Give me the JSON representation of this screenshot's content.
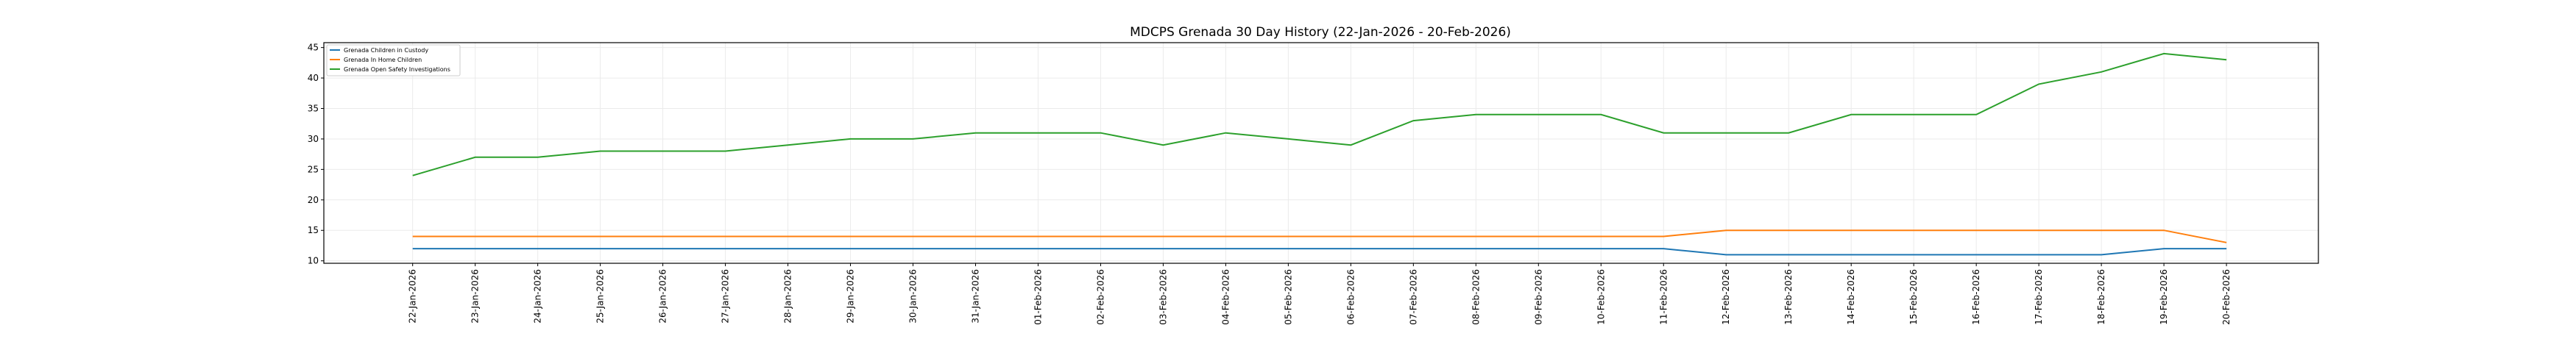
{
  "chart_data": {
    "type": "line",
    "title": "MDCPS Grenada 30 Day History (22-Jan-2026 - 20-Feb-2026)",
    "xlabel": "",
    "ylabel": "",
    "ylim": [
      9.6,
      45.8
    ],
    "yticks": [
      10,
      15,
      20,
      25,
      30,
      35,
      40,
      45
    ],
    "grid": true,
    "legend_position": "top-left",
    "x": [
      "22-Jan-2026",
      "23-Jan-2026",
      "24-Jan-2026",
      "25-Jan-2026",
      "26-Jan-2026",
      "27-Jan-2026",
      "28-Jan-2026",
      "29-Jan-2026",
      "30-Jan-2026",
      "31-Jan-2026",
      "01-Feb-2026",
      "02-Feb-2026",
      "03-Feb-2026",
      "04-Feb-2026",
      "05-Feb-2026",
      "06-Feb-2026",
      "07-Feb-2026",
      "08-Feb-2026",
      "09-Feb-2026",
      "10-Feb-2026",
      "11-Feb-2026",
      "12-Feb-2026",
      "13-Feb-2026",
      "14-Feb-2026",
      "15-Feb-2026",
      "16-Feb-2026",
      "17-Feb-2026",
      "18-Feb-2026",
      "19-Feb-2026",
      "20-Feb-2026"
    ],
    "series": [
      {
        "name": "Grenada Children in Custody",
        "color": "#1f77b4",
        "values": [
          12,
          12,
          12,
          12,
          12,
          12,
          12,
          12,
          12,
          12,
          12,
          12,
          12,
          12,
          12,
          12,
          12,
          12,
          12,
          12,
          12,
          11,
          11,
          11,
          11,
          11,
          11,
          11,
          12,
          12
        ]
      },
      {
        "name": "Grenada In Home Children",
        "color": "#ff7f0e",
        "values": [
          14,
          14,
          14,
          14,
          14,
          14,
          14,
          14,
          14,
          14,
          14,
          14,
          14,
          14,
          14,
          14,
          14,
          14,
          14,
          14,
          14,
          15,
          15,
          15,
          15,
          15,
          15,
          15,
          15,
          13
        ]
      },
      {
        "name": "Grenada Open Safety Investigations",
        "color": "#2ca02c",
        "values": [
          24,
          27,
          27,
          28,
          28,
          28,
          29,
          30,
          30,
          31,
          31,
          31,
          29,
          31,
          30,
          29,
          33,
          34,
          34,
          34,
          31,
          31,
          31,
          34,
          34,
          34,
          39,
          41,
          44,
          43
        ]
      }
    ]
  }
}
